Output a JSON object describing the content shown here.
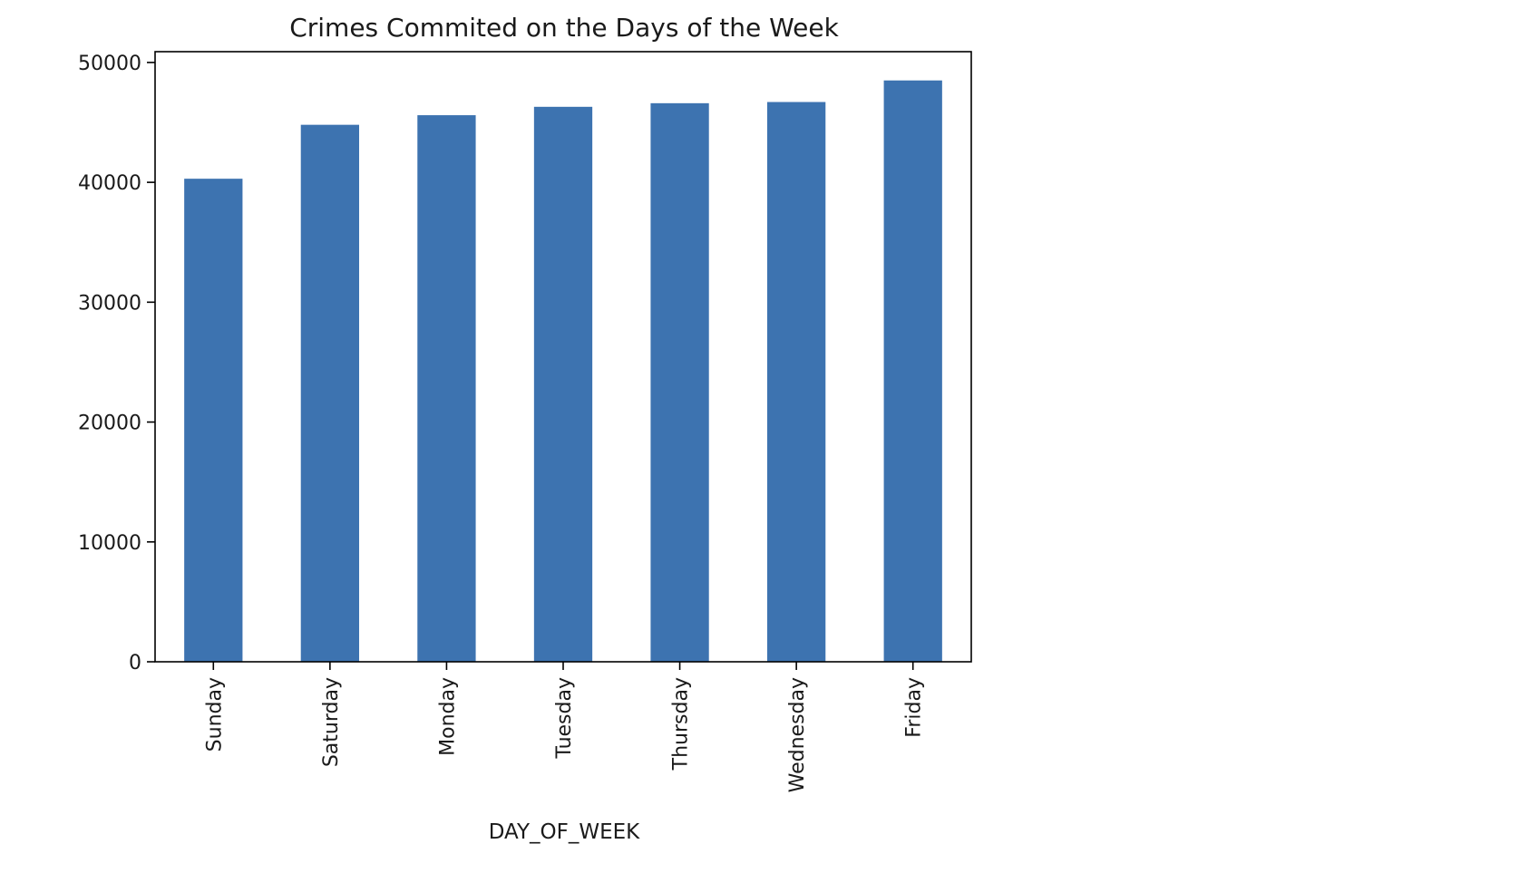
{
  "chart_data": {
    "type": "bar",
    "title": "Crimes Commited on the Days of the Week",
    "xlabel": "DAY_OF_WEEK",
    "ylabel": "",
    "categories": [
      "Sunday",
      "Saturday",
      "Monday",
      "Tuesday",
      "Thursday",
      "Wednesday",
      "Friday"
    ],
    "values": [
      40300,
      44800,
      45600,
      46300,
      46600,
      46700,
      48500
    ],
    "ylim": [
      0,
      50900
    ],
    "yticks": [
      0,
      10000,
      20000,
      30000,
      40000,
      50000
    ],
    "ytick_labels": [
      "0",
      "10000",
      "20000",
      "30000",
      "40000",
      "50000"
    ],
    "bar_color": "#3d73b0",
    "grid": false,
    "legend": "none"
  }
}
